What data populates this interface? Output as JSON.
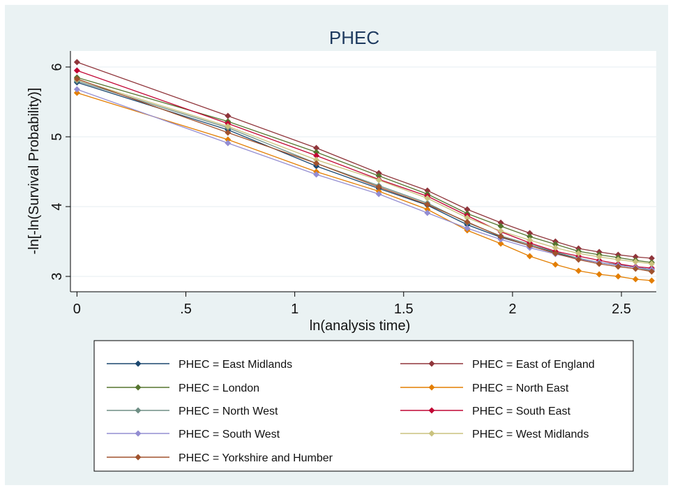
{
  "chart_data": {
    "type": "line",
    "title": "PHEC",
    "xlabel": "ln(analysis time)",
    "ylabel": "-ln[-ln(Survival Probability)]",
    "xlim": [
      -0.03,
      2.66
    ],
    "ylim": [
      2.78,
      6.23
    ],
    "x_ticks": [
      0,
      0.5,
      1,
      1.5,
      2,
      2.5
    ],
    "x_tick_labels": [
      "0",
      ".5",
      "1",
      "1.5",
      "2",
      "2.5"
    ],
    "y_ticks": [
      3,
      4,
      5,
      6
    ],
    "y_tick_labels": [
      "3",
      "4",
      "5",
      "6"
    ],
    "grid": true,
    "legend_placement": "bottom",
    "x": [
      0,
      0.693,
      1.099,
      1.386,
      1.609,
      1.792,
      1.946,
      2.079,
      2.197,
      2.303,
      2.398,
      2.485,
      2.565,
      2.639
    ],
    "series": [
      {
        "name": "PHEC = East Midlands",
        "color": "#1a476f",
        "values": [
          5.78,
          5.1,
          4.58,
          4.26,
          4.02,
          3.74,
          3.56,
          3.44,
          3.34,
          3.25,
          3.2,
          3.16,
          3.13,
          3.1
        ]
      },
      {
        "name": "PHEC = East of England",
        "color": "#90353b",
        "values": [
          6.07,
          5.3,
          4.84,
          4.48,
          4.23,
          3.96,
          3.77,
          3.62,
          3.5,
          3.4,
          3.35,
          3.31,
          3.28,
          3.26
        ]
      },
      {
        "name": "PHEC = London",
        "color": "#55752f",
        "values": [
          5.85,
          5.22,
          4.78,
          4.44,
          4.18,
          3.9,
          3.72,
          3.57,
          3.46,
          3.36,
          3.31,
          3.27,
          3.23,
          3.2
        ]
      },
      {
        "name": "PHEC = North East",
        "color": "#e37e00",
        "values": [
          5.63,
          4.96,
          4.5,
          4.22,
          3.96,
          3.66,
          3.47,
          3.29,
          3.17,
          3.08,
          3.03,
          3.0,
          2.96,
          2.94
        ]
      },
      {
        "name": "PHEC = North West",
        "color": "#6e8e84",
        "values": [
          5.8,
          5.13,
          4.62,
          4.3,
          4.05,
          3.77,
          3.58,
          3.46,
          3.35,
          3.26,
          3.2,
          3.17,
          3.13,
          3.08
        ]
      },
      {
        "name": "PHEC = South East",
        "color": "#c10534",
        "values": [
          5.95,
          5.19,
          4.73,
          4.39,
          4.15,
          3.87,
          3.64,
          3.48,
          3.36,
          3.29,
          3.23,
          3.18,
          3.14,
          3.12
        ]
      },
      {
        "name": "PHEC = South West",
        "color": "#938dd2",
        "values": [
          5.68,
          4.91,
          4.46,
          4.18,
          3.91,
          3.69,
          3.53,
          3.41,
          3.32,
          3.25,
          3.2,
          3.16,
          3.13,
          3.1
        ]
      },
      {
        "name": "PHEC = West Midlands",
        "color": "#cac27e",
        "values": [
          5.82,
          5.15,
          4.67,
          4.38,
          4.12,
          3.84,
          3.65,
          3.52,
          3.41,
          3.33,
          3.28,
          3.24,
          3.21,
          3.18
        ]
      },
      {
        "name": "PHEC = Yorkshire and Humber",
        "color": "#a0522d",
        "values": [
          5.83,
          5.06,
          4.62,
          4.28,
          4.03,
          3.78,
          3.57,
          3.44,
          3.33,
          3.24,
          3.18,
          3.14,
          3.11,
          3.07
        ]
      }
    ]
  }
}
